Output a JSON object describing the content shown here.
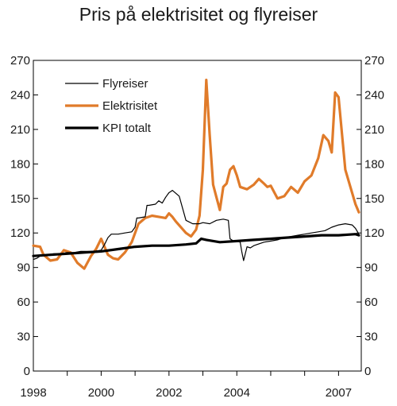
{
  "chart_data": {
    "type": "line",
    "title": "Pris på elektrisitet og flyreiser",
    "xlabel": "",
    "ylabel": "",
    "ylim": [
      0,
      270
    ],
    "xlim": [
      1998.0,
      2007.67
    ],
    "yticks": [
      0,
      30,
      60,
      90,
      120,
      150,
      180,
      210,
      240,
      270
    ],
    "xtick_labels": [
      {
        "x": 1998.0,
        "label": "1998"
      },
      {
        "x": 2000.0,
        "label": "2000"
      },
      {
        "x": 2002.0,
        "label": "2002"
      },
      {
        "x": 2004.0,
        "label": "2004"
      },
      {
        "x": 2007.0,
        "label": "2007"
      }
    ],
    "grid": false,
    "legend_position": "top-left",
    "series": [
      {
        "name": "Flyreiser",
        "color": "#000000",
        "style": "thin",
        "x": [
          1998.0,
          1998.1,
          1998.2,
          1998.3,
          1998.4,
          1998.6,
          1998.8,
          1999.0,
          1999.2,
          1999.4,
          1999.6,
          1999.8,
          2000.0,
          2000.1,
          2000.2,
          2000.3,
          2000.5,
          2000.7,
          2000.9,
          2001.0,
          2001.05,
          2001.1,
          2001.3,
          2001.35,
          2001.4,
          2001.6,
          2001.7,
          2001.8,
          2001.9,
          2002.0,
          2002.05,
          2002.1,
          2002.3,
          2002.5,
          2002.7,
          2002.9,
          2003.0,
          2003.2,
          2003.4,
          2003.6,
          2003.75,
          2003.8,
          2003.9,
          2004.0,
          2004.1,
          2004.15,
          2004.2,
          2004.3,
          2004.4,
          2004.5,
          2004.6,
          2004.8,
          2005.0,
          2005.2,
          2005.4,
          2005.6,
          2005.8,
          2006.0,
          2006.2,
          2006.4,
          2006.6,
          2006.8,
          2007.0,
          2007.2,
          2007.4,
          2007.5,
          2007.6
        ],
        "values": [
          97,
          98,
          100,
          101,
          101,
          102,
          102,
          103,
          103,
          104,
          104,
          104,
          105,
          110,
          116,
          119,
          119,
          120,
          121,
          125,
          133,
          133,
          134,
          144,
          144,
          145,
          148,
          146,
          151,
          155,
          156,
          157,
          152,
          131,
          128,
          128,
          129,
          128,
          131,
          132,
          131,
          115,
          113,
          113,
          112,
          103,
          96,
          108,
          107,
          109,
          110,
          112,
          113,
          114,
          116,
          117,
          118,
          119,
          120,
          121,
          122,
          125,
          127,
          128,
          127,
          124,
          119
        ]
      },
      {
        "name": "Elektrisitet",
        "color": "#e07b2a",
        "style": "thick",
        "x": [
          1998.0,
          1998.2,
          1998.3,
          1998.5,
          1998.7,
          1998.9,
          1999.1,
          1999.3,
          1999.5,
          1999.7,
          1999.85,
          2000.0,
          2000.2,
          2000.35,
          2000.5,
          2000.7,
          2000.9,
          2001.1,
          2001.3,
          2001.5,
          2001.7,
          2001.9,
          2002.0,
          2002.1,
          2002.2,
          2002.5,
          2002.65,
          2002.8,
          2002.9,
          2003.0,
          2003.1,
          2003.2,
          2003.3,
          2003.4,
          2003.5,
          2003.6,
          2003.7,
          2003.8,
          2003.9,
          2004.0,
          2004.1,
          2004.3,
          2004.5,
          2004.65,
          2004.8,
          2004.9,
          2005.0,
          2005.2,
          2005.4,
          2005.6,
          2005.8,
          2006.0,
          2006.2,
          2006.4,
          2006.55,
          2006.7,
          2006.8,
          2006.9,
          2007.0,
          2007.2,
          2007.35,
          2007.5,
          2007.6
        ],
        "values": [
          109,
          108,
          101,
          96,
          97,
          105,
          103,
          94,
          89,
          100,
          106,
          115,
          101,
          98,
          97,
          103,
          112,
          128,
          133,
          135,
          134,
          133,
          137,
          134,
          130,
          120,
          117,
          123,
          135,
          175,
          253,
          205,
          162,
          151,
          140,
          160,
          163,
          175,
          178,
          170,
          160,
          158,
          162,
          167,
          163,
          160,
          161,
          150,
          152,
          160,
          155,
          165,
          170,
          185,
          205,
          200,
          190,
          242,
          238,
          175,
          160,
          145,
          138
        ]
      },
      {
        "name": "KPI totalt",
        "color": "#000000",
        "style": "thick",
        "x": [
          1998.0,
          1998.5,
          1999.0,
          1999.5,
          2000.0,
          2000.5,
          2001.0,
          2001.5,
          2002.0,
          2002.5,
          2002.8,
          2002.95,
          2003.1,
          2003.5,
          2004.0,
          2004.5,
          2005.0,
          2005.5,
          2006.0,
          2006.5,
          2007.0,
          2007.5,
          2007.6
        ],
        "values": [
          100,
          101,
          102,
          103,
          104,
          106,
          108,
          109,
          109,
          110,
          111,
          115,
          114,
          112,
          113,
          114,
          115,
          116,
          117,
          118,
          118,
          119,
          118
        ]
      }
    ]
  }
}
